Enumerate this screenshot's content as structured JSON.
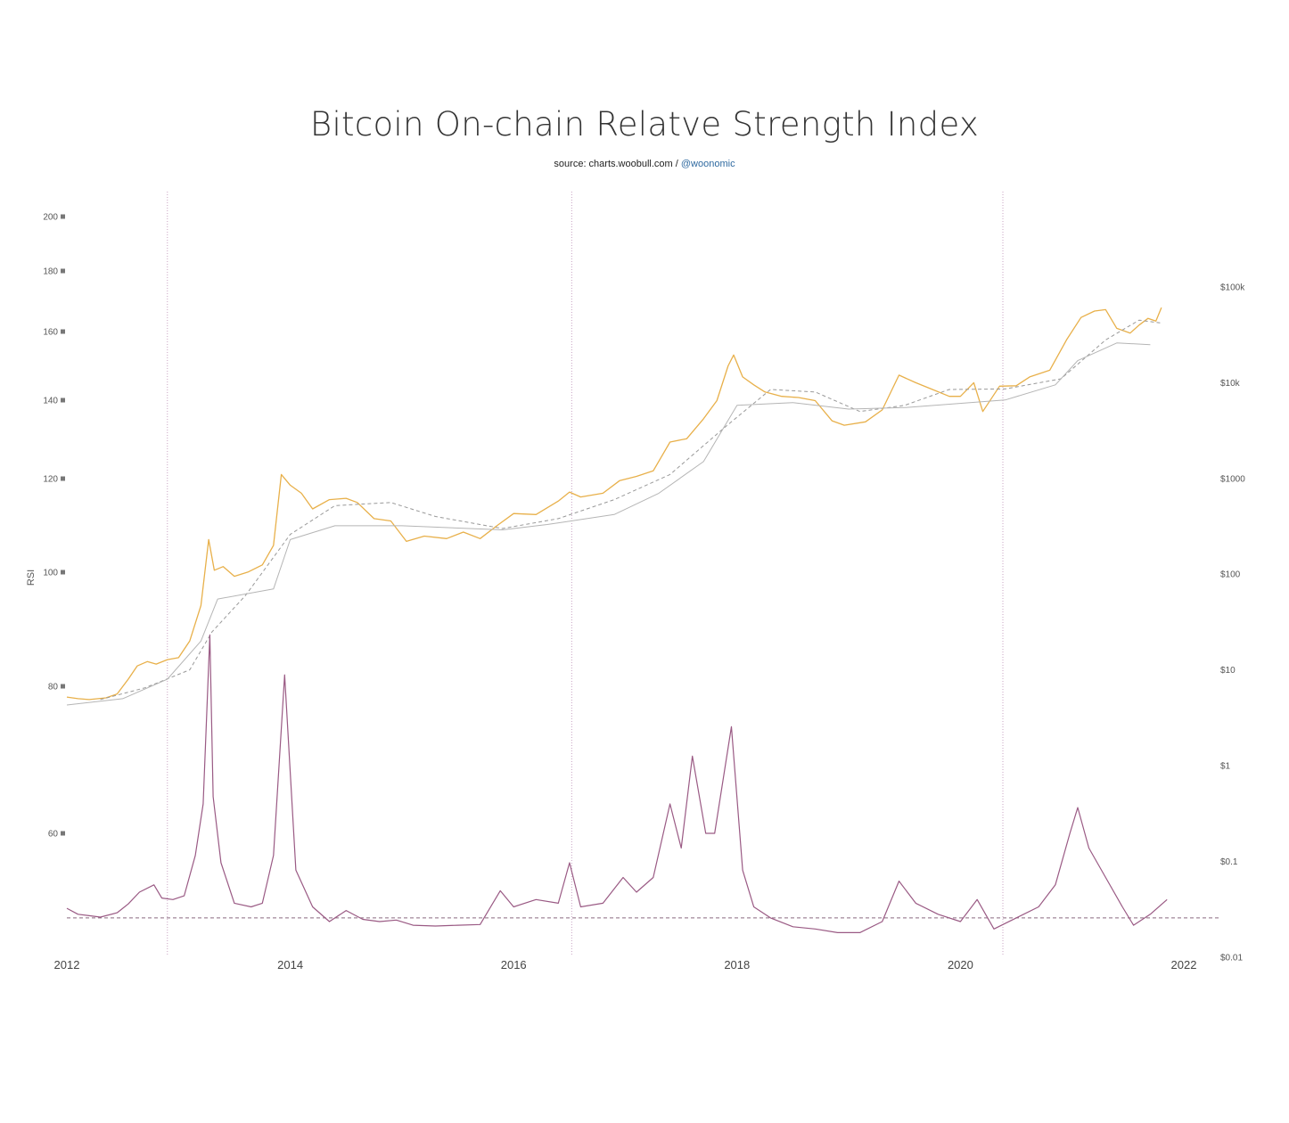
{
  "page": {
    "title": "Bitcoin On-chain Relatve Strength Index",
    "source_prefix": "source: charts.woobull.com / ",
    "source_handle": "@woonomic"
  },
  "colors": {
    "price_line": "#e8b04a",
    "rsi_line": "#9a5a84",
    "ma_dashed": "#999999",
    "realized_line": "#b5b5b5",
    "event_line": "#c9a3c3",
    "baseline_dashed": "#8a6a80"
  },
  "chart_data": {
    "type": "line",
    "title": "Bitcoin On-chain Relatve Strength Index",
    "ylabel": "RSI",
    "x_range": [
      2012.0,
      2022.0
    ],
    "x_ticks": [
      "2012",
      "2014",
      "2016",
      "2018",
      "2020",
      "2022"
    ],
    "y_left_ticks": [
      "200",
      "180",
      "160",
      "140",
      "120",
      "100",
      "80",
      "60"
    ],
    "y_left_tick_values": [
      200,
      180,
      160,
      140,
      120,
      100,
      80,
      60
    ],
    "y_left_note": "left axis is non-linear as printed",
    "y_right_ticks": [
      "$100k",
      "$10k",
      "$1000",
      "$100",
      "$10",
      "$1",
      "$0.1",
      "$0.01"
    ],
    "y_right_tick_values": [
      100000,
      10000,
      1000,
      100,
      10,
      1,
      0.1,
      0.01
    ],
    "y_right_scale": "log",
    "event_lines_x": [
      2012.9,
      2016.52,
      2020.38
    ],
    "rsi_baseline_dashed": 48.5,
    "grid": false,
    "series": [
      {
        "key": "price",
        "axis": "right",
        "style": "solid",
        "points": [
          [
            2012.0,
            5.2
          ],
          [
            2012.1,
            5.0
          ],
          [
            2012.2,
            4.9
          ],
          [
            2012.35,
            5.1
          ],
          [
            2012.45,
            5.6
          ],
          [
            2012.55,
            8.0
          ],
          [
            2012.63,
            11.0
          ],
          [
            2012.72,
            12.2
          ],
          [
            2012.8,
            11.5
          ],
          [
            2012.9,
            12.8
          ],
          [
            2013.0,
            13.4
          ],
          [
            2013.1,
            20.0
          ],
          [
            2013.2,
            47.0
          ],
          [
            2013.27,
            230.0
          ],
          [
            2013.32,
            110.0
          ],
          [
            2013.4,
            120.0
          ],
          [
            2013.5,
            95.0
          ],
          [
            2013.62,
            105.0
          ],
          [
            2013.75,
            125.0
          ],
          [
            2013.85,
            200.0
          ],
          [
            2013.92,
            1100.0
          ],
          [
            2014.0,
            850.0
          ],
          [
            2014.1,
            700.0
          ],
          [
            2014.2,
            480.0
          ],
          [
            2014.35,
            600.0
          ],
          [
            2014.5,
            620.0
          ],
          [
            2014.6,
            560.0
          ],
          [
            2014.75,
            380.0
          ],
          [
            2014.9,
            360.0
          ],
          [
            2015.04,
            220.0
          ],
          [
            2015.2,
            250.0
          ],
          [
            2015.4,
            235.0
          ],
          [
            2015.55,
            275.0
          ],
          [
            2015.7,
            235.0
          ],
          [
            2015.85,
            320.0
          ],
          [
            2016.0,
            430.0
          ],
          [
            2016.2,
            420.0
          ],
          [
            2016.4,
            580.0
          ],
          [
            2016.5,
            720.0
          ],
          [
            2016.6,
            640.0
          ],
          [
            2016.8,
            700.0
          ],
          [
            2016.95,
            950.0
          ],
          [
            2017.1,
            1050.0
          ],
          [
            2017.25,
            1200.0
          ],
          [
            2017.4,
            2400.0
          ],
          [
            2017.55,
            2600.0
          ],
          [
            2017.7,
            4200.0
          ],
          [
            2017.82,
            6500.0
          ],
          [
            2017.92,
            15000.0
          ],
          [
            2017.97,
            19500.0
          ],
          [
            2018.05,
            11500.0
          ],
          [
            2018.15,
            9500.0
          ],
          [
            2018.25,
            8000.0
          ],
          [
            2018.4,
            7200.0
          ],
          [
            2018.55,
            7000.0
          ],
          [
            2018.7,
            6500.0
          ],
          [
            2018.85,
            4000.0
          ],
          [
            2018.96,
            3600.0
          ],
          [
            2019.15,
            3900.0
          ],
          [
            2019.3,
            5200.0
          ],
          [
            2019.45,
            12000.0
          ],
          [
            2019.6,
            10000.0
          ],
          [
            2019.75,
            8500.0
          ],
          [
            2019.9,
            7200.0
          ],
          [
            2020.0,
            7200.0
          ],
          [
            2020.12,
            10000.0
          ],
          [
            2020.2,
            5000.0
          ],
          [
            2020.35,
            9200.0
          ],
          [
            2020.5,
            9300.0
          ],
          [
            2020.62,
            11500.0
          ],
          [
            2020.8,
            13500.0
          ],
          [
            2020.95,
            28000.0
          ],
          [
            2021.08,
            48000.0
          ],
          [
            2021.2,
            56000.0
          ],
          [
            2021.3,
            58000.0
          ],
          [
            2021.4,
            37000.0
          ],
          [
            2021.52,
            33000.0
          ],
          [
            2021.6,
            40000.0
          ],
          [
            2021.68,
            47000.0
          ],
          [
            2021.75,
            44000.0
          ],
          [
            2021.8,
            61000.0
          ]
        ]
      },
      {
        "key": "price_ma",
        "axis": "right",
        "style": "dashed",
        "points": [
          [
            2012.3,
            4.9
          ],
          [
            2012.7,
            6.5
          ],
          [
            2013.1,
            10.0
          ],
          [
            2013.3,
            25.0
          ],
          [
            2013.6,
            60.0
          ],
          [
            2014.0,
            260.0
          ],
          [
            2014.4,
            520.0
          ],
          [
            2014.9,
            560.0
          ],
          [
            2015.3,
            400.0
          ],
          [
            2015.9,
            300.0
          ],
          [
            2016.4,
            380.0
          ],
          [
            2016.9,
            600.0
          ],
          [
            2017.4,
            1100.0
          ],
          [
            2017.9,
            3500.0
          ],
          [
            2018.3,
            8500.0
          ],
          [
            2018.7,
            8000.0
          ],
          [
            2019.1,
            5000.0
          ],
          [
            2019.5,
            5800.0
          ],
          [
            2019.9,
            8500.0
          ],
          [
            2020.4,
            8600.0
          ],
          [
            2020.9,
            11000.0
          ],
          [
            2021.3,
            28000.0
          ],
          [
            2021.6,
            45000.0
          ],
          [
            2021.8,
            42000.0
          ]
        ]
      },
      {
        "key": "price_realized",
        "axis": "right",
        "style": "solid",
        "points": [
          [
            2012.0,
            4.3
          ],
          [
            2012.5,
            5.0
          ],
          [
            2012.9,
            8.0
          ],
          [
            2013.2,
            20.0
          ],
          [
            2013.35,
            55.0
          ],
          [
            2013.85,
            70.0
          ],
          [
            2014.0,
            230.0
          ],
          [
            2014.4,
            320.0
          ],
          [
            2015.0,
            320.0
          ],
          [
            2015.9,
            290.0
          ],
          [
            2016.3,
            330.0
          ],
          [
            2016.9,
            420.0
          ],
          [
            2017.3,
            700.0
          ],
          [
            2017.7,
            1500.0
          ],
          [
            2018.0,
            5800.0
          ],
          [
            2018.5,
            6200.0
          ],
          [
            2019.0,
            5300.0
          ],
          [
            2019.5,
            5500.0
          ],
          [
            2020.4,
            6600.0
          ],
          [
            2020.85,
            9500.0
          ],
          [
            2021.05,
            17000.0
          ],
          [
            2021.4,
            26000.0
          ],
          [
            2021.7,
            25000.0
          ]
        ]
      },
      {
        "key": "rsi",
        "axis": "left",
        "style": "solid",
        "points": [
          [
            2012.0,
            49.8
          ],
          [
            2012.1,
            49.0
          ],
          [
            2012.2,
            48.8
          ],
          [
            2012.3,
            48.6
          ],
          [
            2012.45,
            49.2
          ],
          [
            2012.55,
            50.4
          ],
          [
            2012.65,
            52.0
          ],
          [
            2012.78,
            53.0
          ],
          [
            2012.85,
            51.2
          ],
          [
            2012.95,
            51.0
          ],
          [
            2013.05,
            51.5
          ],
          [
            2013.15,
            57.0
          ],
          [
            2013.22,
            64.0
          ],
          [
            2013.28,
            89.0
          ],
          [
            2013.31,
            65.0
          ],
          [
            2013.38,
            56.0
          ],
          [
            2013.5,
            50.5
          ],
          [
            2013.65,
            50.0
          ],
          [
            2013.75,
            50.5
          ],
          [
            2013.85,
            57.0
          ],
          [
            2013.95,
            82.0
          ],
          [
            2014.05,
            55.0
          ],
          [
            2014.2,
            50.0
          ],
          [
            2014.35,
            48.0
          ],
          [
            2014.5,
            49.5
          ],
          [
            2014.65,
            48.3
          ],
          [
            2014.8,
            48.0
          ],
          [
            2014.95,
            48.2
          ],
          [
            2015.1,
            47.5
          ],
          [
            2015.3,
            47.4
          ],
          [
            2015.5,
            47.5
          ],
          [
            2015.7,
            47.6
          ],
          [
            2015.88,
            52.2
          ],
          [
            2016.0,
            50.0
          ],
          [
            2016.2,
            51.0
          ],
          [
            2016.4,
            50.5
          ],
          [
            2016.5,
            56.0
          ],
          [
            2016.6,
            50.0
          ],
          [
            2016.8,
            50.5
          ],
          [
            2016.98,
            54.0
          ],
          [
            2017.1,
            52.0
          ],
          [
            2017.25,
            54.0
          ],
          [
            2017.4,
            64.0
          ],
          [
            2017.5,
            58.0
          ],
          [
            2017.6,
            70.5
          ],
          [
            2017.72,
            60.0
          ],
          [
            2017.8,
            60.0
          ],
          [
            2017.95,
            74.5
          ],
          [
            2018.05,
            55.0
          ],
          [
            2018.15,
            50.0
          ],
          [
            2018.3,
            48.5
          ],
          [
            2018.5,
            47.3
          ],
          [
            2018.7,
            47.0
          ],
          [
            2018.9,
            46.5
          ],
          [
            2019.1,
            46.5
          ],
          [
            2019.3,
            48.0
          ],
          [
            2019.45,
            53.5
          ],
          [
            2019.6,
            50.5
          ],
          [
            2019.8,
            49.0
          ],
          [
            2020.0,
            48.0
          ],
          [
            2020.15,
            51.0
          ],
          [
            2020.3,
            47.0
          ],
          [
            2020.5,
            48.5
          ],
          [
            2020.7,
            50.0
          ],
          [
            2020.85,
            53.0
          ],
          [
            2020.98,
            60.0
          ],
          [
            2021.05,
            63.5
          ],
          [
            2021.15,
            58.0
          ],
          [
            2021.3,
            54.0
          ],
          [
            2021.45,
            50.0
          ],
          [
            2021.55,
            47.5
          ],
          [
            2021.7,
            49.0
          ],
          [
            2021.85,
            51.0
          ]
        ]
      }
    ]
  }
}
